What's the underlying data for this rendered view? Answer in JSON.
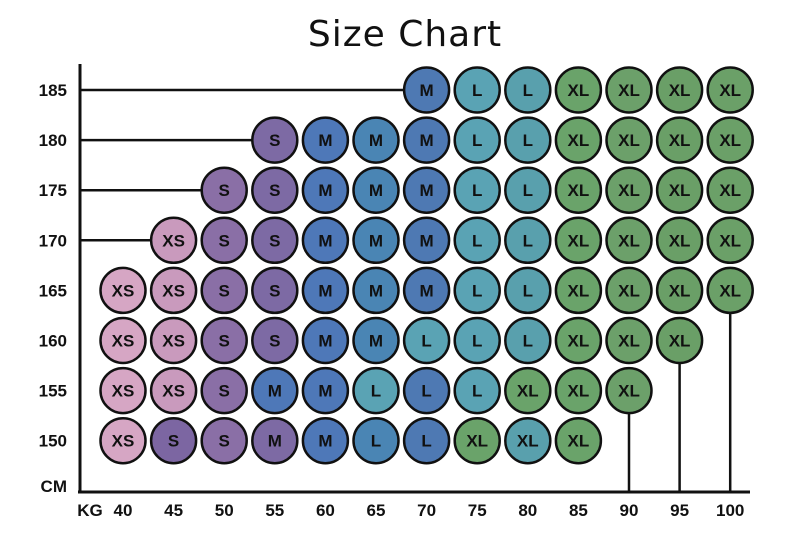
{
  "chart_data": {
    "type": "table",
    "title": "Size Chart",
    "x_unit": "KG",
    "y_unit": "CM",
    "x_ticks": [
      40,
      45,
      50,
      55,
      60,
      65,
      70,
      75,
      80,
      85,
      90,
      95,
      100
    ],
    "y_ticks": [
      185,
      180,
      175,
      170,
      165,
      160,
      155,
      150
    ],
    "rows": [
      {
        "height": 185,
        "start_kg": 70,
        "sizes": [
          "M",
          "L",
          "L",
          "XL",
          "XL",
          "XL",
          "XL"
        ]
      },
      {
        "height": 180,
        "start_kg": 55,
        "sizes": [
          "S",
          "M",
          "M",
          "M",
          "L",
          "L",
          "XL",
          "XL",
          "XL",
          "XL"
        ]
      },
      {
        "height": 175,
        "start_kg": 50,
        "sizes": [
          "S",
          "S",
          "M",
          "M",
          "M",
          "L",
          "L",
          "XL",
          "XL",
          "XL",
          "XL"
        ]
      },
      {
        "height": 170,
        "start_kg": 45,
        "sizes": [
          "XS",
          "S",
          "S",
          "M",
          "M",
          "M",
          "L",
          "L",
          "XL",
          "XL",
          "XL",
          "XL"
        ]
      },
      {
        "height": 165,
        "start_kg": 40,
        "sizes": [
          "XS",
          "XS",
          "S",
          "S",
          "M",
          "M",
          "M",
          "L",
          "L",
          "XL",
          "XL",
          "XL",
          "XL"
        ]
      },
      {
        "height": 160,
        "start_kg": 40,
        "sizes": [
          "XS",
          "XS",
          "S",
          "S",
          "M",
          "M",
          "L",
          "L",
          "L",
          "XL",
          "XL",
          "XL"
        ]
      },
      {
        "height": 155,
        "start_kg": 40,
        "sizes": [
          "XS",
          "XS",
          "S",
          "M",
          "M",
          "L",
          "L",
          "L",
          "XL",
          "XL",
          "XL"
        ]
      },
      {
        "height": 150,
        "start_kg": 40,
        "sizes": [
          "XS",
          "S",
          "S",
          "M",
          "M",
          "L",
          "L",
          "XL",
          "XL",
          "XL"
        ]
      }
    ],
    "column_colors": {
      "40": "#d6a6c4",
      "45": "#c99abd",
      "50": "#8a6fa6",
      "55": "#7d6aa4",
      "60": "#4e78b8",
      "65": "#4a85b4",
      "70": "#4e79b3",
      "75": "#5aa3b4",
      "80": "#59a0ad",
      "85": "#6aa36a",
      "90": "#6ca06a",
      "95": "#6a9f67",
      "100": "#6ba068"
    },
    "row_colors": {
      "150": {
        "45": "#7c66a2",
        "75": "#6aa36a"
      },
      "155": {
        "55": "#4e78b8",
        "65": "#5aa3b4",
        "80": "#6aa36a"
      },
      "160": {
        "70": "#5aa3b4"
      },
      "165": {},
      "170": {},
      "175": {},
      "180": {},
      "185": {}
    }
  }
}
